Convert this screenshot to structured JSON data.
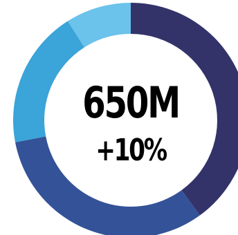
{
  "chart_data": {
    "type": "pie",
    "center_value": "650M",
    "center_change": "+10%",
    "slices": [
      {
        "value": 40,
        "color": "#33336a"
      },
      {
        "value": 32,
        "color": "#345298"
      },
      {
        "value": 19,
        "color": "#3ba4d8"
      },
      {
        "value": 9,
        "color": "#6bc2ea"
      }
    ]
  }
}
